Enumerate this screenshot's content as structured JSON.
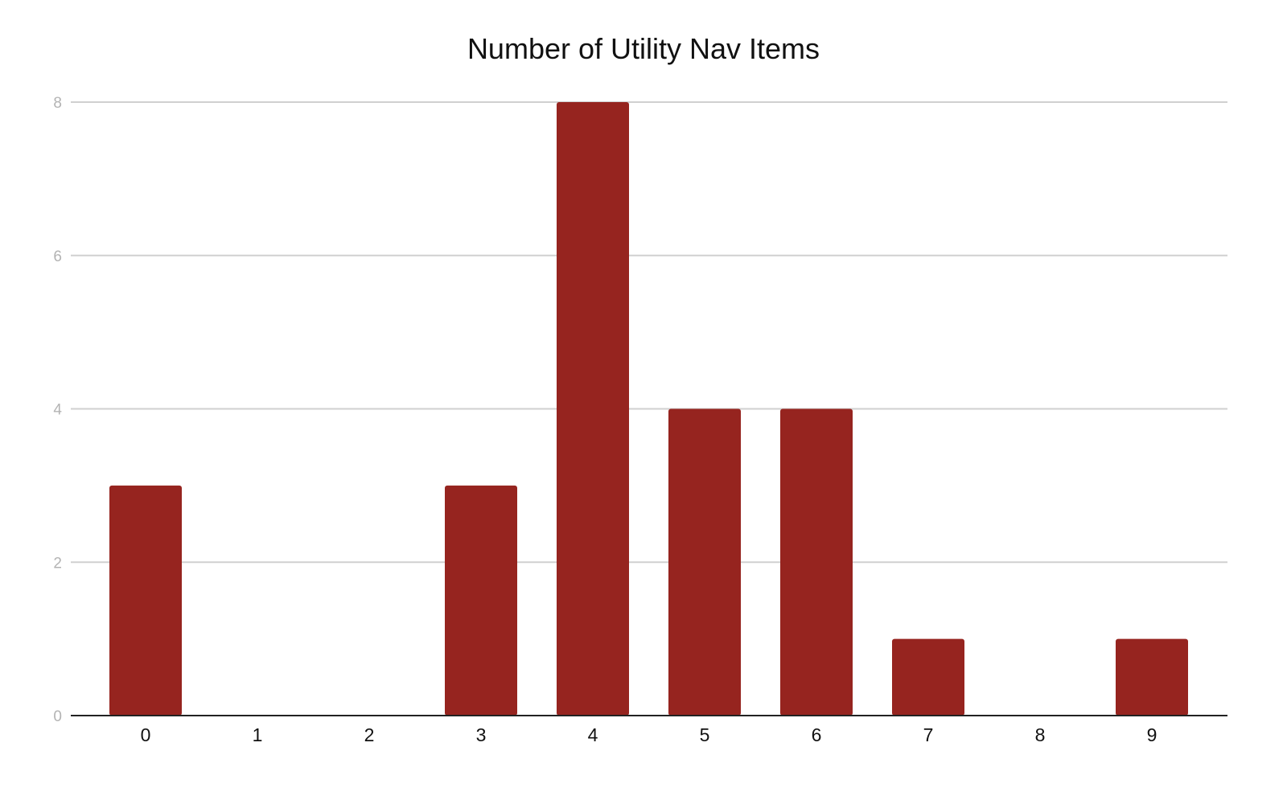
{
  "chart_data": {
    "type": "bar",
    "title": "Number of Utility Nav Items",
    "xlabel": "",
    "ylabel": "",
    "categories": [
      "0",
      "1",
      "2",
      "3",
      "4",
      "5",
      "6",
      "7",
      "8",
      "9"
    ],
    "values": [
      3,
      0,
      0,
      3,
      8,
      4,
      4,
      1,
      0,
      1
    ],
    "ylim": [
      0,
      8
    ],
    "yticks": [
      "0",
      "2",
      "4",
      "6",
      "8"
    ],
    "grid": true,
    "legend": "none",
    "bar_color": "#96241f",
    "grid_color": "#d0d0d0",
    "axis_color": "#222222"
  }
}
